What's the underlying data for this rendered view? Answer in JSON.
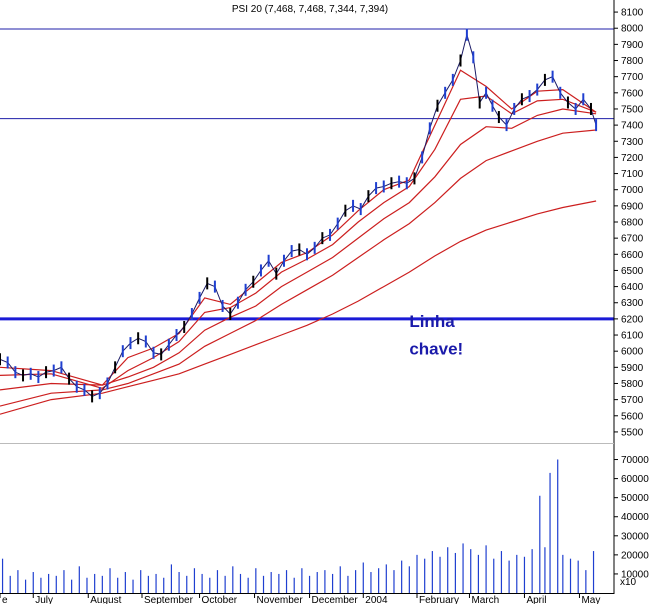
{
  "chart_data": {
    "type": "line",
    "title": "PSI 20 (7,468, 7,468, 7,344, 7,394)",
    "price_axis": {
      "ylim": [
        5450,
        8150
      ],
      "ticks": [
        5500,
        5600,
        5700,
        5800,
        5900,
        6000,
        6100,
        6200,
        6300,
        6400,
        6500,
        6600,
        6700,
        6800,
        6900,
        7000,
        7100,
        7200,
        7300,
        7400,
        7500,
        7600,
        7700,
        7800,
        7900,
        8000,
        8100
      ]
    },
    "volume_axis": {
      "ylim": [
        0,
        75000
      ],
      "ticks": [
        10000,
        20000,
        30000,
        40000,
        50000,
        60000,
        70000
      ],
      "multiplier_label": "x10"
    },
    "x_axis": {
      "range": [
        0,
        48
      ],
      "labels": [
        {
          "label": "e",
          "pos": 0.0
        },
        {
          "label": "July",
          "pos": 2.6
        },
        {
          "label": "August",
          "pos": 6.9
        },
        {
          "label": "September",
          "pos": 11.1
        },
        {
          "label": "October",
          "pos": 15.6
        },
        {
          "label": "November",
          "pos": 19.9
        },
        {
          "label": "December",
          "pos": 24.2
        },
        {
          "label": "2004",
          "pos": 28.4
        },
        {
          "label": "February",
          "pos": 32.6
        },
        {
          "label": "March",
          "pos": 36.7
        },
        {
          "label": "April",
          "pos": 41.0
        },
        {
          "label": "May",
          "pos": 45.3
        }
      ]
    },
    "horizontal_lines": [
      {
        "y": 7995,
        "color": "#1f1fa8",
        "width": 1
      },
      {
        "y": 7440,
        "color": "#1f1fa8",
        "width": 1
      },
      {
        "y": 6200,
        "color": "#1a1ad6",
        "width": 3
      }
    ],
    "price_series": [
      {
        "x": 0,
        "y": 5950
      },
      {
        "x": 0.6,
        "y": 5930
      },
      {
        "x": 1.2,
        "y": 5870
      },
      {
        "x": 1.8,
        "y": 5850
      },
      {
        "x": 2.4,
        "y": 5860
      },
      {
        "x": 3.0,
        "y": 5840
      },
      {
        "x": 3.6,
        "y": 5870
      },
      {
        "x": 4.2,
        "y": 5880
      },
      {
        "x": 4.8,
        "y": 5900
      },
      {
        "x": 5.4,
        "y": 5830
      },
      {
        "x": 6.0,
        "y": 5780
      },
      {
        "x": 6.6,
        "y": 5760
      },
      {
        "x": 7.2,
        "y": 5720
      },
      {
        "x": 7.8,
        "y": 5740
      },
      {
        "x": 8.4,
        "y": 5800
      },
      {
        "x": 9.0,
        "y": 5900
      },
      {
        "x": 9.6,
        "y": 6000
      },
      {
        "x": 10.2,
        "y": 6050
      },
      {
        "x": 10.8,
        "y": 6080
      },
      {
        "x": 11.4,
        "y": 6060
      },
      {
        "x": 12.0,
        "y": 5990
      },
      {
        "x": 12.6,
        "y": 5980
      },
      {
        "x": 13.2,
        "y": 6040
      },
      {
        "x": 13.8,
        "y": 6100
      },
      {
        "x": 14.4,
        "y": 6150
      },
      {
        "x": 15.0,
        "y": 6230
      },
      {
        "x": 15.6,
        "y": 6330
      },
      {
        "x": 16.2,
        "y": 6420
      },
      {
        "x": 16.8,
        "y": 6400
      },
      {
        "x": 17.4,
        "y": 6280
      },
      {
        "x": 18.0,
        "y": 6230
      },
      {
        "x": 18.6,
        "y": 6300
      },
      {
        "x": 19.2,
        "y": 6380
      },
      {
        "x": 19.8,
        "y": 6430
      },
      {
        "x": 20.4,
        "y": 6500
      },
      {
        "x": 21.0,
        "y": 6560
      },
      {
        "x": 21.6,
        "y": 6480
      },
      {
        "x": 22.2,
        "y": 6560
      },
      {
        "x": 22.8,
        "y": 6620
      },
      {
        "x": 23.4,
        "y": 6630
      },
      {
        "x": 24.0,
        "y": 6600
      },
      {
        "x": 24.6,
        "y": 6640
      },
      {
        "x": 25.2,
        "y": 6700
      },
      {
        "x": 25.8,
        "y": 6720
      },
      {
        "x": 26.4,
        "y": 6790
      },
      {
        "x": 27.0,
        "y": 6870
      },
      {
        "x": 27.6,
        "y": 6900
      },
      {
        "x": 28.2,
        "y": 6880
      },
      {
        "x": 28.8,
        "y": 6960
      },
      {
        "x": 29.4,
        "y": 7010
      },
      {
        "x": 30.0,
        "y": 7020
      },
      {
        "x": 30.6,
        "y": 7040
      },
      {
        "x": 31.2,
        "y": 7050
      },
      {
        "x": 31.8,
        "y": 7040
      },
      {
        "x": 32.4,
        "y": 7070
      },
      {
        "x": 33.0,
        "y": 7200
      },
      {
        "x": 33.6,
        "y": 7380
      },
      {
        "x": 34.2,
        "y": 7520
      },
      {
        "x": 34.8,
        "y": 7600
      },
      {
        "x": 35.4,
        "y": 7680
      },
      {
        "x": 36.0,
        "y": 7800
      },
      {
        "x": 36.5,
        "y": 7960
      },
      {
        "x": 37.0,
        "y": 7820
      },
      {
        "x": 37.5,
        "y": 7540
      },
      {
        "x": 38.0,
        "y": 7600
      },
      {
        "x": 38.5,
        "y": 7520
      },
      {
        "x": 39.0,
        "y": 7450
      },
      {
        "x": 39.6,
        "y": 7400
      },
      {
        "x": 40.2,
        "y": 7500
      },
      {
        "x": 40.8,
        "y": 7560
      },
      {
        "x": 41.4,
        "y": 7580
      },
      {
        "x": 42.0,
        "y": 7620
      },
      {
        "x": 42.6,
        "y": 7680
      },
      {
        "x": 43.2,
        "y": 7700
      },
      {
        "x": 43.8,
        "y": 7600
      },
      {
        "x": 44.4,
        "y": 7540
      },
      {
        "x": 45.0,
        "y": 7500
      },
      {
        "x": 45.6,
        "y": 7560
      },
      {
        "x": 46.2,
        "y": 7500
      },
      {
        "x": 46.6,
        "y": 7400
      }
    ],
    "moving_averages": [
      {
        "color": "#cc1f1f",
        "points": [
          {
            "x": 0,
            "y": 5900
          },
          {
            "x": 4,
            "y": 5880
          },
          {
            "x": 8,
            "y": 5790
          },
          {
            "x": 10,
            "y": 5960
          },
          {
            "x": 12,
            "y": 6020
          },
          {
            "x": 14,
            "y": 6110
          },
          {
            "x": 16,
            "y": 6330
          },
          {
            "x": 18,
            "y": 6290
          },
          {
            "x": 20,
            "y": 6420
          },
          {
            "x": 22,
            "y": 6550
          },
          {
            "x": 24,
            "y": 6610
          },
          {
            "x": 26,
            "y": 6720
          },
          {
            "x": 28,
            "y": 6870
          },
          {
            "x": 30,
            "y": 7000
          },
          {
            "x": 32,
            "y": 7060
          },
          {
            "x": 34,
            "y": 7400
          },
          {
            "x": 36,
            "y": 7740
          },
          {
            "x": 38,
            "y": 7640
          },
          {
            "x": 40,
            "y": 7500
          },
          {
            "x": 42,
            "y": 7610
          },
          {
            "x": 44,
            "y": 7620
          },
          {
            "x": 46.6,
            "y": 7480
          }
        ]
      },
      {
        "color": "#cc1f1f",
        "points": [
          {
            "x": 0,
            "y": 5850
          },
          {
            "x": 4,
            "y": 5860
          },
          {
            "x": 8,
            "y": 5770
          },
          {
            "x": 10,
            "y": 5880
          },
          {
            "x": 12,
            "y": 5960
          },
          {
            "x": 14,
            "y": 6060
          },
          {
            "x": 16,
            "y": 6240
          },
          {
            "x": 18,
            "y": 6270
          },
          {
            "x": 20,
            "y": 6360
          },
          {
            "x": 22,
            "y": 6490
          },
          {
            "x": 24,
            "y": 6570
          },
          {
            "x": 26,
            "y": 6660
          },
          {
            "x": 28,
            "y": 6800
          },
          {
            "x": 30,
            "y": 6920
          },
          {
            "x": 32,
            "y": 7020
          },
          {
            "x": 34,
            "y": 7250
          },
          {
            "x": 36,
            "y": 7560
          },
          {
            "x": 38,
            "y": 7580
          },
          {
            "x": 40,
            "y": 7470
          },
          {
            "x": 42,
            "y": 7550
          },
          {
            "x": 44,
            "y": 7560
          },
          {
            "x": 46.6,
            "y": 7480
          }
        ]
      },
      {
        "color": "#cc1f1f",
        "points": [
          {
            "x": 0,
            "y": 5760
          },
          {
            "x": 4,
            "y": 5800
          },
          {
            "x": 8,
            "y": 5790
          },
          {
            "x": 10,
            "y": 5840
          },
          {
            "x": 12,
            "y": 5900
          },
          {
            "x": 14,
            "y": 5990
          },
          {
            "x": 16,
            "y": 6130
          },
          {
            "x": 18,
            "y": 6210
          },
          {
            "x": 20,
            "y": 6280
          },
          {
            "x": 22,
            "y": 6400
          },
          {
            "x": 24,
            "y": 6490
          },
          {
            "x": 26,
            "y": 6580
          },
          {
            "x": 28,
            "y": 6700
          },
          {
            "x": 30,
            "y": 6820
          },
          {
            "x": 32,
            "y": 6920
          },
          {
            "x": 34,
            "y": 7080
          },
          {
            "x": 36,
            "y": 7280
          },
          {
            "x": 38,
            "y": 7390
          },
          {
            "x": 40,
            "y": 7380
          },
          {
            "x": 42,
            "y": 7460
          },
          {
            "x": 44,
            "y": 7500
          },
          {
            "x": 46.6,
            "y": 7470
          }
        ]
      },
      {
        "color": "#cc1f1f",
        "points": [
          {
            "x": 0,
            "y": 5660
          },
          {
            "x": 4,
            "y": 5740
          },
          {
            "x": 8,
            "y": 5760
          },
          {
            "x": 10,
            "y": 5800
          },
          {
            "x": 12,
            "y": 5860
          },
          {
            "x": 14,
            "y": 5920
          },
          {
            "x": 16,
            "y": 6030
          },
          {
            "x": 18,
            "y": 6110
          },
          {
            "x": 20,
            "y": 6190
          },
          {
            "x": 22,
            "y": 6290
          },
          {
            "x": 24,
            "y": 6380
          },
          {
            "x": 26,
            "y": 6470
          },
          {
            "x": 28,
            "y": 6580
          },
          {
            "x": 30,
            "y": 6690
          },
          {
            "x": 32,
            "y": 6790
          },
          {
            "x": 34,
            "y": 6920
          },
          {
            "x": 36,
            "y": 7070
          },
          {
            "x": 38,
            "y": 7180
          },
          {
            "x": 40,
            "y": 7240
          },
          {
            "x": 42,
            "y": 7300
          },
          {
            "x": 44,
            "y": 7350
          },
          {
            "x": 46.6,
            "y": 7370
          }
        ]
      },
      {
        "color": "#cc1f1f",
        "points": [
          {
            "x": 0,
            "y": 5610
          },
          {
            "x": 4,
            "y": 5700
          },
          {
            "x": 8,
            "y": 5740
          },
          {
            "x": 10,
            "y": 5780
          },
          {
            "x": 12,
            "y": 5820
          },
          {
            "x": 14,
            "y": 5860
          },
          {
            "x": 16,
            "y": 5920
          },
          {
            "x": 18,
            "y": 5980
          },
          {
            "x": 20,
            "y": 6040
          },
          {
            "x": 22,
            "y": 6100
          },
          {
            "x": 24,
            "y": 6160
          },
          {
            "x": 26,
            "y": 6230
          },
          {
            "x": 28,
            "y": 6310
          },
          {
            "x": 30,
            "y": 6400
          },
          {
            "x": 32,
            "y": 6490
          },
          {
            "x": 34,
            "y": 6590
          },
          {
            "x": 36,
            "y": 6680
          },
          {
            "x": 38,
            "y": 6750
          },
          {
            "x": 40,
            "y": 6800
          },
          {
            "x": 42,
            "y": 6850
          },
          {
            "x": 44,
            "y": 6890
          },
          {
            "x": 46.6,
            "y": 6930
          }
        ]
      }
    ],
    "volume_series": [
      {
        "x": 0.2,
        "v": 18000
      },
      {
        "x": 0.8,
        "v": 9000
      },
      {
        "x": 1.4,
        "v": 12000
      },
      {
        "x": 2.0,
        "v": 7000
      },
      {
        "x": 2.6,
        "v": 11000
      },
      {
        "x": 3.2,
        "v": 8000
      },
      {
        "x": 3.8,
        "v": 10000
      },
      {
        "x": 4.4,
        "v": 9000
      },
      {
        "x": 5.0,
        "v": 12000
      },
      {
        "x": 5.6,
        "v": 7000
      },
      {
        "x": 6.2,
        "v": 14000
      },
      {
        "x": 6.8,
        "v": 8000
      },
      {
        "x": 7.4,
        "v": 10000
      },
      {
        "x": 8.0,
        "v": 9000
      },
      {
        "x": 8.6,
        "v": 13000
      },
      {
        "x": 9.2,
        "v": 8000
      },
      {
        "x": 9.8,
        "v": 11000
      },
      {
        "x": 10.4,
        "v": 7000
      },
      {
        "x": 11.0,
        "v": 12000
      },
      {
        "x": 11.6,
        "v": 9000
      },
      {
        "x": 12.2,
        "v": 10000
      },
      {
        "x": 12.8,
        "v": 8000
      },
      {
        "x": 13.4,
        "v": 15000
      },
      {
        "x": 14.0,
        "v": 11000
      },
      {
        "x": 14.6,
        "v": 9000
      },
      {
        "x": 15.2,
        "v": 13000
      },
      {
        "x": 15.8,
        "v": 10000
      },
      {
        "x": 16.4,
        "v": 8000
      },
      {
        "x": 17.0,
        "v": 12000
      },
      {
        "x": 17.6,
        "v": 9000
      },
      {
        "x": 18.2,
        "v": 14000
      },
      {
        "x": 18.8,
        "v": 10000
      },
      {
        "x": 19.4,
        "v": 8000
      },
      {
        "x": 20.0,
        "v": 13000
      },
      {
        "x": 20.6,
        "v": 9000
      },
      {
        "x": 21.2,
        "v": 11000
      },
      {
        "x": 21.8,
        "v": 10000
      },
      {
        "x": 22.4,
        "v": 12000
      },
      {
        "x": 23.0,
        "v": 8000
      },
      {
        "x": 23.6,
        "v": 13000
      },
      {
        "x": 24.2,
        "v": 9000
      },
      {
        "x": 24.8,
        "v": 11000
      },
      {
        "x": 25.4,
        "v": 12000
      },
      {
        "x": 26.0,
        "v": 10000
      },
      {
        "x": 26.6,
        "v": 14000
      },
      {
        "x": 27.2,
        "v": 9000
      },
      {
        "x": 27.8,
        "v": 12000
      },
      {
        "x": 28.4,
        "v": 16000
      },
      {
        "x": 29.0,
        "v": 11000
      },
      {
        "x": 29.6,
        "v": 13000
      },
      {
        "x": 30.2,
        "v": 15000
      },
      {
        "x": 30.8,
        "v": 12000
      },
      {
        "x": 31.4,
        "v": 17000
      },
      {
        "x": 32.0,
        "v": 14000
      },
      {
        "x": 32.6,
        "v": 20000
      },
      {
        "x": 33.2,
        "v": 18000
      },
      {
        "x": 33.8,
        "v": 22000
      },
      {
        "x": 34.4,
        "v": 19000
      },
      {
        "x": 35.0,
        "v": 24000
      },
      {
        "x": 35.6,
        "v": 21000
      },
      {
        "x": 36.2,
        "v": 26000
      },
      {
        "x": 36.8,
        "v": 23000
      },
      {
        "x": 37.4,
        "v": 20000
      },
      {
        "x": 38.0,
        "v": 25000
      },
      {
        "x": 38.6,
        "v": 18000
      },
      {
        "x": 39.2,
        "v": 22000
      },
      {
        "x": 39.8,
        "v": 17000
      },
      {
        "x": 40.4,
        "v": 20000
      },
      {
        "x": 41.0,
        "v": 19000
      },
      {
        "x": 41.6,
        "v": 23000
      },
      {
        "x": 42.2,
        "v": 51000
      },
      {
        "x": 42.6,
        "v": 24000
      },
      {
        "x": 43.0,
        "v": 63000
      },
      {
        "x": 43.6,
        "v": 70000
      },
      {
        "x": 44.0,
        "v": 20000
      },
      {
        "x": 44.6,
        "v": 18000
      },
      {
        "x": 45.2,
        "v": 17000
      },
      {
        "x": 45.8,
        "v": 12000
      },
      {
        "x": 46.4,
        "v": 22000
      }
    ],
    "annotations": [
      {
        "text": "Linha",
        "x": 32.0,
        "y": 6150
      },
      {
        "text": "chave!",
        "x": 32.0,
        "y": 5980
      }
    ]
  }
}
